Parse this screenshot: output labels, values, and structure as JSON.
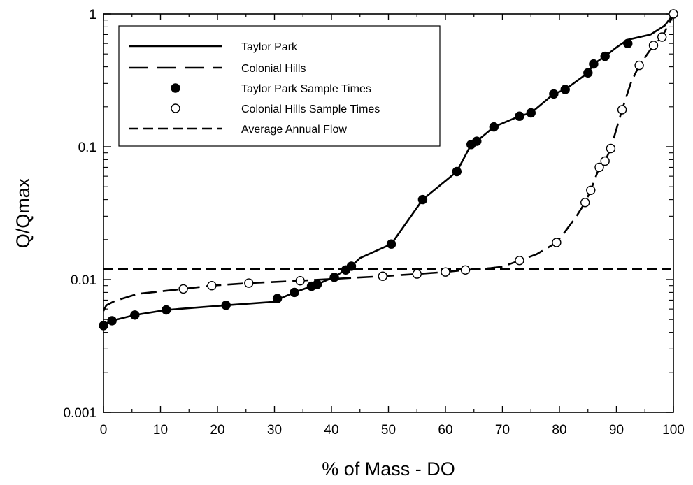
{
  "chart_data": {
    "type": "line",
    "xlabel": "% of Mass - DO",
    "ylabel": "Q/Qmax",
    "xlim": [
      0,
      100
    ],
    "ylim": [
      0.001,
      1
    ],
    "yscale": "log",
    "x_ticks": [
      0,
      10,
      20,
      30,
      40,
      50,
      60,
      70,
      80,
      90,
      100
    ],
    "x_tick_labels": [
      "0",
      "10",
      "20",
      "30",
      "40",
      "50",
      "60",
      "70",
      "80",
      "90",
      "100"
    ],
    "y_ticks": [
      0.001,
      0.01,
      0.1,
      1
    ],
    "y_tick_labels": [
      "0.001",
      "0.01",
      "0.1",
      "1"
    ],
    "grid": false,
    "legend_position": "top-left",
    "legend": [
      {
        "label": "Taylor Park",
        "style": "solid"
      },
      {
        "label": "Colonial Hills",
        "style": "long-dash"
      },
      {
        "label": "Taylor Park Sample Times",
        "style": "filled-circle"
      },
      {
        "label": "Colonial Hills Sample Times",
        "style": "open-circle"
      },
      {
        "label": "Average Annual Flow",
        "style": "short-dash"
      }
    ],
    "series": [
      {
        "name": "Taylor Park",
        "style": "solid",
        "x": [
          0,
          0.5,
          1.5,
          5.5,
          11,
          21.5,
          30,
          31,
          33.5,
          36.5,
          37.5,
          40.5,
          42.5,
          43.5,
          45,
          50.5,
          56,
          62,
          64.5,
          65.5,
          68.5,
          73,
          75,
          79,
          81,
          85,
          86,
          88,
          90,
          92,
          96,
          98.5,
          100
        ],
        "y": [
          0.0042,
          0.0047,
          0.0049,
          0.0054,
          0.0059,
          0.0064,
          0.0068,
          0.0072,
          0.008,
          0.0089,
          0.0092,
          0.0105,
          0.0118,
          0.0126,
          0.0145,
          0.0185,
          0.04,
          0.065,
          0.104,
          0.11,
          0.141,
          0.17,
          0.18,
          0.25,
          0.27,
          0.36,
          0.42,
          0.48,
          0.56,
          0.64,
          0.7,
          0.82,
          1.0
        ]
      },
      {
        "name": "Colonial Hills",
        "style": "long-dash",
        "x": [
          0,
          0.5,
          2,
          6,
          14,
          19,
          25.5,
          34.5,
          49,
          55,
          60,
          63.5,
          68,
          70,
          73,
          76,
          79.5,
          81,
          83,
          84.5,
          85.5,
          87,
          88,
          89,
          91,
          92.5,
          94,
          96.5,
          98,
          100
        ],
        "y": [
          0.0058,
          0.0064,
          0.0069,
          0.0078,
          0.0085,
          0.009,
          0.0094,
          0.0098,
          0.0106,
          0.011,
          0.0114,
          0.0118,
          0.0122,
          0.0125,
          0.0139,
          0.0155,
          0.019,
          0.023,
          0.03,
          0.038,
          0.047,
          0.07,
          0.078,
          0.097,
          0.19,
          0.3,
          0.41,
          0.58,
          0.67,
          0.98
        ]
      },
      {
        "name": "Taylor Park Sample Times",
        "style": "filled-circle",
        "x": [
          0,
          1.5,
          5.5,
          11,
          21.5,
          30.5,
          33.5,
          36.5,
          37.5,
          40.5,
          42.5,
          43.5,
          50.5,
          56,
          62,
          64.5,
          65.5,
          68.5,
          73,
          75,
          79,
          81,
          85,
          86,
          88,
          92
        ],
        "y": [
          0.0045,
          0.0049,
          0.0054,
          0.0059,
          0.0064,
          0.0072,
          0.008,
          0.0089,
          0.0092,
          0.0104,
          0.0118,
          0.0126,
          0.0185,
          0.04,
          0.065,
          0.104,
          0.11,
          0.141,
          0.17,
          0.18,
          0.25,
          0.27,
          0.36,
          0.42,
          0.48,
          0.6
        ]
      },
      {
        "name": "Colonial Hills Sample Times",
        "style": "open-circle",
        "x": [
          14,
          19,
          25.5,
          34.5,
          49,
          55,
          60,
          63.5,
          73,
          79.5,
          84.5,
          85.5,
          87,
          88,
          89,
          91,
          94,
          96.5,
          98,
          100
        ],
        "y": [
          0.0085,
          0.009,
          0.0094,
          0.0098,
          0.0106,
          0.011,
          0.0114,
          0.0118,
          0.0139,
          0.019,
          0.038,
          0.047,
          0.07,
          0.078,
          0.097,
          0.19,
          0.41,
          0.58,
          0.67,
          1.0
        ]
      },
      {
        "name": "Average Annual Flow",
        "style": "short-dash",
        "x": [
          0,
          100
        ],
        "y": [
          0.012,
          0.012
        ]
      }
    ]
  }
}
